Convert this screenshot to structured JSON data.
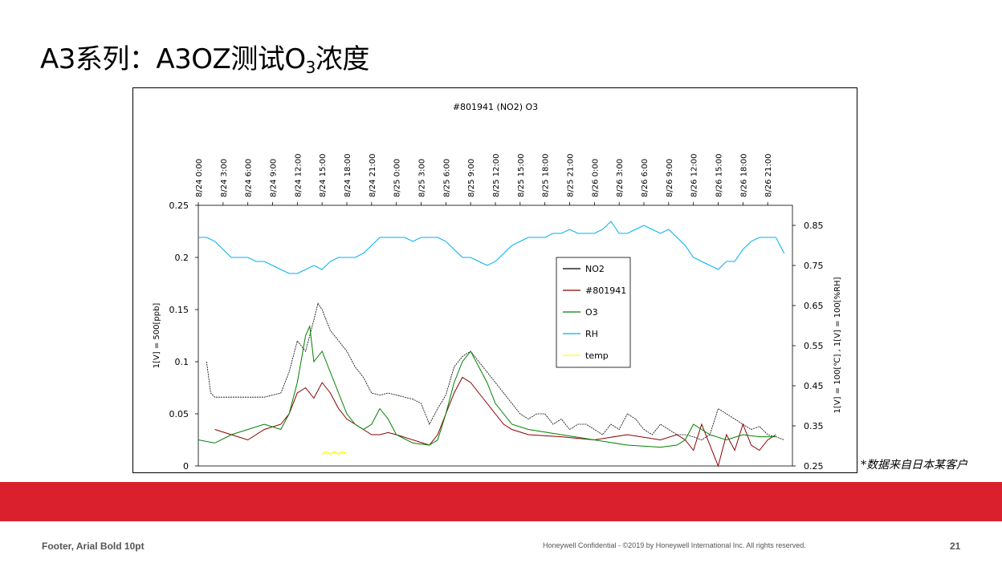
{
  "slide": {
    "title_main": "A3系列：A3OZ测试O",
    "title_sub": "3",
    "title_end": "浓度",
    "source_note": "*数据来自日本某客户",
    "footer_left": "Footer, Arial Bold 10pt",
    "footer_center": "Honeywell Confidential - ©2019 by Honeywell International Inc. All rights reserved.",
    "page_number": "21"
  },
  "colors": {
    "band": "#da1f2d",
    "NO2": "#000000",
    "#801941": "#8b0000",
    "O3": "#008000",
    "RH": "#00b0f0",
    "temp": "#ffff00"
  },
  "chart_data": {
    "type": "line",
    "title": "#801941 (NO2) O3",
    "ylabel": "1[V] = 500[ppb]",
    "y2label": "1[V] = 100[℃] ,  1[V] = 100[%RH]",
    "ylim": [
      0,
      0.25
    ],
    "y2lim": [
      0.25,
      0.9
    ],
    "yticks": [
      "0.25",
      "0.2",
      "0.15",
      "0.1",
      "0.05",
      "0"
    ],
    "y2ticks": [
      "0.85",
      "0.75",
      "0.65",
      "0.55",
      "0.45",
      "0.35",
      "0.25"
    ],
    "x_tick_labels": [
      "8/24 0:00",
      "8/24 3:00",
      "8/24 6:00",
      "8/24 9:00",
      "8/24 12:00",
      "8/24 15:00",
      "8/24 18:00",
      "8/24 21:00",
      "8/25 0:00",
      "8/25 3:00",
      "8/25 6:00",
      "8/25 9:00",
      "8/25 12:00",
      "8/25 15:00",
      "8/25 18:00",
      "8/25 21:00",
      "8/26 0:00",
      "8/26 3:00",
      "8/26 6:00",
      "8/26 9:00",
      "8/26 12:00",
      "8/26 15:00",
      "8/26 18:00",
      "8/26 21:00"
    ],
    "x_unit": "hours from 8/24 0:00",
    "legend": [
      "NO2",
      "#801941",
      "O3",
      "RH",
      "temp"
    ],
    "legend_position": "center-right",
    "series": [
      {
        "name": "NO2",
        "axis": "left",
        "x": [
          1,
          1.5,
          2,
          4,
          6,
          8,
          10,
          11,
          12,
          13,
          14,
          14.5,
          15,
          16,
          17,
          18,
          19,
          20,
          21,
          22,
          23,
          24,
          25,
          26,
          27,
          28,
          29,
          30,
          31,
          32,
          33,
          34,
          35,
          36,
          37,
          38,
          39,
          40,
          41,
          42,
          43,
          44,
          45,
          46,
          47,
          48,
          49,
          50,
          51,
          52,
          53,
          54,
          55,
          56,
          57,
          58,
          59,
          60,
          61,
          62,
          63,
          64,
          65,
          66,
          67,
          68,
          69,
          70,
          71
        ],
        "y": [
          0.1,
          0.07,
          0.066,
          0.066,
          0.066,
          0.066,
          0.07,
          0.09,
          0.12,
          0.11,
          0.14,
          0.156,
          0.15,
          0.13,
          0.12,
          0.11,
          0.095,
          0.085,
          0.07,
          0.068,
          0.07,
          0.068,
          0.066,
          0.064,
          0.06,
          0.04,
          0.055,
          0.068,
          0.095,
          0.105,
          0.11,
          0.1,
          0.09,
          0.08,
          0.07,
          0.06,
          0.05,
          0.045,
          0.05,
          0.05,
          0.04,
          0.045,
          0.035,
          0.04,
          0.04,
          0.035,
          0.03,
          0.04,
          0.035,
          0.05,
          0.045,
          0.035,
          0.03,
          0.04,
          0.035,
          0.03,
          0.03,
          0.028,
          0.025,
          0.03,
          0.055,
          0.05,
          0.045,
          0.04,
          0.035,
          0.038,
          0.03,
          0.028,
          0.025
        ]
      },
      {
        "name": "#801941",
        "axis": "left",
        "x": [
          2,
          4,
          6,
          8,
          10,
          11,
          12,
          13,
          14,
          15,
          16,
          17,
          18,
          19,
          20,
          21,
          22,
          23,
          24,
          28,
          29,
          30,
          31,
          32,
          33,
          34,
          35,
          36,
          37,
          38,
          40,
          44,
          48,
          52,
          56,
          58,
          59,
          60,
          61,
          62,
          63,
          64,
          65,
          66,
          67,
          68,
          69,
          70
        ],
        "y": [
          0.035,
          0.03,
          0.025,
          0.035,
          0.04,
          0.05,
          0.07,
          0.075,
          0.065,
          0.08,
          0.07,
          0.055,
          0.045,
          0.04,
          0.035,
          0.03,
          0.03,
          0.032,
          0.03,
          0.02,
          0.03,
          0.05,
          0.07,
          0.085,
          0.08,
          0.07,
          0.06,
          0.05,
          0.04,
          0.035,
          0.03,
          0.028,
          0.025,
          0.03,
          0.025,
          0.03,
          0.025,
          0.015,
          0.04,
          0.02,
          0.0,
          0.03,
          0.015,
          0.04,
          0.02,
          0.015,
          0.025,
          0.03
        ]
      },
      {
        "name": "O3",
        "axis": "left",
        "x": [
          0,
          2,
          4,
          6,
          8,
          10,
          11,
          12,
          13,
          13.5,
          14,
          15,
          16,
          17,
          18,
          19,
          20,
          21,
          22,
          23,
          24,
          26,
          28,
          29,
          30,
          31,
          32,
          33,
          34,
          35,
          36,
          37,
          38,
          40,
          44,
          48,
          52,
          56,
          58,
          59,
          60,
          61,
          62,
          64,
          66,
          68,
          70
        ],
        "y": [
          0.025,
          0.022,
          0.03,
          0.035,
          0.04,
          0.035,
          0.05,
          0.08,
          0.125,
          0.134,
          0.1,
          0.11,
          0.09,
          0.07,
          0.05,
          0.04,
          0.035,
          0.04,
          0.055,
          0.045,
          0.03,
          0.022,
          0.02,
          0.025,
          0.05,
          0.08,
          0.1,
          0.11,
          0.095,
          0.08,
          0.06,
          0.05,
          0.04,
          0.035,
          0.03,
          0.025,
          0.02,
          0.018,
          0.02,
          0.025,
          0.04,
          0.035,
          0.03,
          0.025,
          0.03,
          0.028,
          0.028
        ]
      },
      {
        "name": "RH",
        "axis": "right",
        "x": [
          0,
          1,
          2,
          3,
          4,
          5,
          6,
          7,
          8,
          9,
          10,
          11,
          12,
          13,
          14,
          15,
          16,
          17,
          18,
          19,
          20,
          21,
          22,
          23,
          24,
          25,
          26,
          27,
          28,
          29,
          30,
          31,
          32,
          33,
          34,
          35,
          36,
          37,
          38,
          39,
          40,
          41,
          42,
          43,
          44,
          45,
          46,
          47,
          48,
          49,
          50,
          51,
          52,
          53,
          54,
          55,
          56,
          57,
          58,
          59,
          60,
          61,
          62,
          63,
          64,
          65,
          66,
          67,
          68,
          69,
          70,
          71
        ],
        "y": [
          0.82,
          0.82,
          0.81,
          0.79,
          0.77,
          0.77,
          0.77,
          0.76,
          0.76,
          0.75,
          0.74,
          0.73,
          0.73,
          0.74,
          0.75,
          0.74,
          0.76,
          0.77,
          0.77,
          0.77,
          0.78,
          0.8,
          0.82,
          0.82,
          0.82,
          0.82,
          0.81,
          0.82,
          0.82,
          0.82,
          0.81,
          0.79,
          0.77,
          0.77,
          0.76,
          0.75,
          0.76,
          0.78,
          0.8,
          0.81,
          0.82,
          0.82,
          0.82,
          0.83,
          0.83,
          0.84,
          0.83,
          0.83,
          0.83,
          0.84,
          0.86,
          0.83,
          0.83,
          0.84,
          0.85,
          0.84,
          0.83,
          0.84,
          0.82,
          0.8,
          0.77,
          0.76,
          0.75,
          0.74,
          0.76,
          0.76,
          0.79,
          0.81,
          0.82,
          0.82,
          0.82,
          0.78
        ]
      },
      {
        "name": "temp",
        "axis": "right",
        "x": [
          15,
          15.5,
          16,
          16.5,
          17,
          17.5,
          18
        ],
        "y": [
          0.28,
          0.285,
          0.28,
          0.285,
          0.28,
          0.285,
          0.28
        ]
      }
    ]
  }
}
